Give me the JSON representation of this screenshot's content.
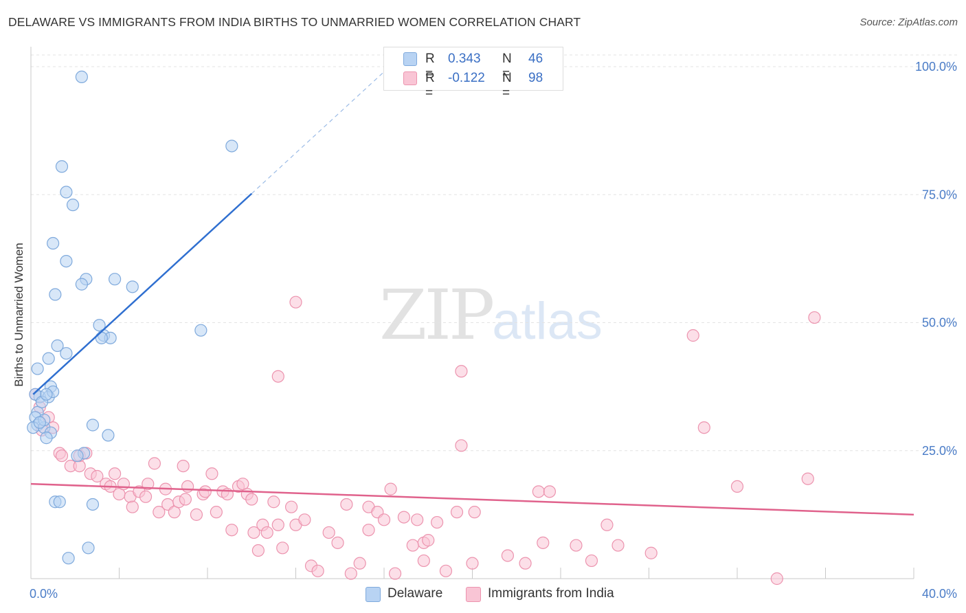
{
  "title": "DELAWARE VS IMMIGRANTS FROM INDIA BIRTHS TO UNMARRIED WOMEN CORRELATION CHART",
  "source": "Source: ZipAtlas.com",
  "watermark": {
    "zip": "ZIP",
    "atlas": "atlas"
  },
  "legend": {
    "r_label": "R =",
    "n_label": "N =",
    "rows": [
      {
        "r": "0.343",
        "n": "46",
        "color": "#b8d3f3",
        "border": "#7ea9dc"
      },
      {
        "r": "-0.122",
        "n": "98",
        "color": "#f9c5d5",
        "border": "#ec93ae"
      }
    ]
  },
  "bottom_legend": [
    {
      "label": "Delaware",
      "color": "#b8d3f3",
      "border": "#7ea9dc"
    },
    {
      "label": "Immigrants from India",
      "color": "#f9c5d5",
      "border": "#ec93ae"
    }
  ],
  "chart_data": {
    "type": "scatter",
    "xlabel": "",
    "ylabel": "Births to Unmarried Women",
    "xlim": [
      0,
      40
    ],
    "ylim": [
      0,
      100
    ],
    "x_tick_labels": [
      "0.0%",
      "40.0%"
    ],
    "y_tick_labels": [
      "25.0%",
      "50.0%",
      "75.0%",
      "100.0%"
    ],
    "y_ticks": [
      25,
      50,
      75,
      100
    ],
    "grid": true,
    "series": [
      {
        "name": "Delaware",
        "color": "#7ea9dc",
        "fill": "#b8d3f3",
        "line_color": "#2f6fd0",
        "trend": {
          "x0": 0.1,
          "y0": 36.0,
          "x1": 10.0,
          "y1": 75.2,
          "ext_x1": 16.0,
          "ext_y1": 99.0
        },
        "points": [
          [
            2.3,
            98.0
          ],
          [
            9.1,
            84.5
          ],
          [
            1.4,
            80.5
          ],
          [
            1.6,
            75.5
          ],
          [
            1.9,
            73.0
          ],
          [
            1.0,
            65.5
          ],
          [
            1.6,
            62.0
          ],
          [
            2.5,
            58.5
          ],
          [
            3.8,
            58.5
          ],
          [
            2.3,
            57.5
          ],
          [
            4.6,
            57.0
          ],
          [
            1.1,
            55.5
          ],
          [
            3.1,
            49.5
          ],
          [
            3.3,
            47.5
          ],
          [
            3.6,
            47.0
          ],
          [
            3.2,
            47.0
          ],
          [
            7.7,
            48.5
          ],
          [
            1.2,
            45.5
          ],
          [
            1.6,
            44.0
          ],
          [
            0.8,
            43.0
          ],
          [
            0.3,
            41.0
          ],
          [
            0.9,
            37.5
          ],
          [
            0.4,
            35.5
          ],
          [
            0.8,
            35.5
          ],
          [
            0.2,
            36.0
          ],
          [
            0.3,
            32.5
          ],
          [
            0.2,
            31.5
          ],
          [
            0.3,
            30.0
          ],
          [
            0.1,
            29.5
          ],
          [
            0.6,
            29.5
          ],
          [
            0.9,
            28.5
          ],
          [
            0.7,
            27.5
          ],
          [
            2.8,
            30.0
          ],
          [
            3.5,
            28.0
          ],
          [
            2.4,
            24.5
          ],
          [
            2.1,
            24.0
          ],
          [
            1.1,
            15.0
          ],
          [
            1.3,
            15.0
          ],
          [
            2.8,
            14.5
          ],
          [
            2.6,
            6.0
          ],
          [
            1.7,
            4.0
          ],
          [
            0.5,
            34.5
          ],
          [
            0.6,
            31.0
          ],
          [
            1.0,
            36.5
          ],
          [
            0.4,
            30.5
          ],
          [
            0.7,
            36.0
          ]
        ]
      },
      {
        "name": "Immigrants from India",
        "color": "#ec93ae",
        "fill": "#f9c5d5",
        "line_color": "#e0628c",
        "trend": {
          "x0": 0.0,
          "y0": 18.5,
          "x1": 40.0,
          "y1": 12.5
        },
        "points": [
          [
            0.2,
            36.0
          ],
          [
            0.4,
            33.5
          ],
          [
            0.8,
            31.5
          ],
          [
            0.5,
            29.0
          ],
          [
            1.0,
            29.5
          ],
          [
            1.3,
            24.5
          ],
          [
            1.4,
            24.0
          ],
          [
            1.8,
            22.0
          ],
          [
            2.2,
            22.0
          ],
          [
            2.7,
            20.5
          ],
          [
            2.2,
            24.0
          ],
          [
            2.5,
            24.5
          ],
          [
            3.0,
            20.0
          ],
          [
            3.4,
            18.5
          ],
          [
            3.6,
            18.0
          ],
          [
            3.8,
            20.5
          ],
          [
            4.0,
            16.5
          ],
          [
            4.2,
            18.5
          ],
          [
            4.5,
            16.0
          ],
          [
            4.6,
            14.0
          ],
          [
            4.9,
            17.0
          ],
          [
            5.2,
            16.0
          ],
          [
            5.3,
            18.5
          ],
          [
            5.6,
            22.5
          ],
          [
            5.8,
            13.0
          ],
          [
            6.1,
            17.5
          ],
          [
            6.2,
            14.5
          ],
          [
            6.5,
            13.0
          ],
          [
            6.7,
            15.0
          ],
          [
            6.9,
            22.0
          ],
          [
            7.0,
            15.5
          ],
          [
            7.1,
            18.0
          ],
          [
            7.5,
            12.5
          ],
          [
            7.8,
            16.5
          ],
          [
            7.9,
            17.0
          ],
          [
            8.2,
            20.5
          ],
          [
            8.4,
            13.0
          ],
          [
            8.7,
            17.0
          ],
          [
            8.9,
            16.5
          ],
          [
            9.1,
            9.5
          ],
          [
            9.4,
            18.0
          ],
          [
            9.6,
            18.5
          ],
          [
            9.8,
            16.5
          ],
          [
            10.0,
            15.5
          ],
          [
            10.1,
            9.0
          ],
          [
            10.3,
            5.5
          ],
          [
            10.5,
            10.5
          ],
          [
            10.7,
            9.0
          ],
          [
            11.0,
            15.0
          ],
          [
            11.2,
            10.5
          ],
          [
            11.4,
            6.0
          ],
          [
            11.8,
            14.0
          ],
          [
            12.0,
            10.5
          ],
          [
            12.4,
            11.5
          ],
          [
            12.7,
            2.5
          ],
          [
            13.0,
            1.5
          ],
          [
            13.5,
            9.0
          ],
          [
            13.9,
            7.0
          ],
          [
            14.3,
            14.5
          ],
          [
            14.5,
            1.0
          ],
          [
            14.9,
            3.0
          ],
          [
            15.3,
            14.0
          ],
          [
            15.7,
            13.0
          ],
          [
            16.0,
            11.5
          ],
          [
            16.3,
            17.5
          ],
          [
            16.9,
            12.0
          ],
          [
            17.3,
            6.5
          ],
          [
            17.8,
            7.0
          ],
          [
            18.0,
            7.5
          ],
          [
            18.4,
            11.0
          ],
          [
            18.8,
            1.5
          ],
          [
            19.3,
            13.0
          ],
          [
            19.5,
            26.0
          ],
          [
            19.5,
            40.5
          ],
          [
            20.1,
            13.0
          ],
          [
            12.0,
            54.0
          ],
          [
            11.2,
            39.5
          ],
          [
            15.3,
            9.5
          ],
          [
            16.5,
            1.0
          ],
          [
            17.8,
            3.5
          ],
          [
            17.5,
            11.5
          ],
          [
            20.0,
            3.0
          ],
          [
            21.6,
            4.5
          ],
          [
            22.4,
            3.0
          ],
          [
            23.0,
            17.0
          ],
          [
            23.5,
            17.0
          ],
          [
            23.2,
            7.0
          ],
          [
            24.7,
            6.5
          ],
          [
            25.4,
            3.5
          ],
          [
            26.1,
            10.5
          ],
          [
            26.6,
            6.5
          ],
          [
            28.1,
            5.0
          ],
          [
            30.0,
            47.5
          ],
          [
            30.5,
            29.5
          ],
          [
            32.0,
            18.0
          ],
          [
            33.8,
            0.0
          ],
          [
            35.2,
            19.5
          ],
          [
            35.5,
            51.0
          ]
        ]
      }
    ]
  }
}
